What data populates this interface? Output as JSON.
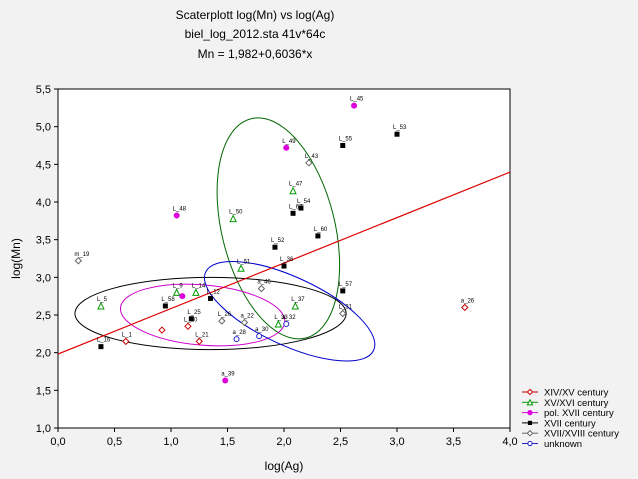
{
  "chart_data": {
    "type": "scatter",
    "title": "Scaterplott log(Mn) vs log(Ag)",
    "subtitle": "biel_log_2012.sta 41v*64c",
    "equation": "Mn = 1,982+0,6036*x",
    "xlabel": "log(Ag)",
    "ylabel": "log(Mn)",
    "xlim": [
      0.0,
      4.0
    ],
    "ylim": [
      1.0,
      5.5
    ],
    "x_ticks": [
      "0,0",
      "0,5",
      "1,0",
      "1,5",
      "2,0",
      "2,5",
      "3,0",
      "3,5",
      "4,0"
    ],
    "y_ticks": [
      "1,0",
      "1,5",
      "2,0",
      "2,5",
      "3,0",
      "3,5",
      "4,0",
      "4,5",
      "5,0",
      "5,5"
    ],
    "grid": false,
    "legend_position": "bottom-right",
    "regression": {
      "intercept": 1.982,
      "slope": 0.6036,
      "color": "#dd0000"
    },
    "series": [
      {
        "name": "XIV/XV century",
        "color": "#cc0000",
        "marker": "diamond-open",
        "points": [
          {
            "x": 0.6,
            "y": 2.15,
            "label": "L_1"
          },
          {
            "x": 0.92,
            "y": 2.3,
            "label": ""
          },
          {
            "x": 1.15,
            "y": 2.35,
            "label": "L_20"
          },
          {
            "x": 1.25,
            "y": 2.15,
            "label": "L_21"
          },
          {
            "x": 3.6,
            "y": 2.6,
            "label": "a_26"
          }
        ]
      },
      {
        "name": "XV/XVI century",
        "color": "#009900",
        "marker": "triangle-open",
        "points": [
          {
            "x": 0.38,
            "y": 2.62,
            "label": "L_5"
          },
          {
            "x": 1.05,
            "y": 2.8,
            "label": "L_9"
          },
          {
            "x": 1.22,
            "y": 2.8,
            "label": "L_14"
          },
          {
            "x": 1.55,
            "y": 3.78,
            "label": "L_50"
          },
          {
            "x": 1.62,
            "y": 3.12,
            "label": "L_51"
          },
          {
            "x": 2.08,
            "y": 4.15,
            "label": "L_47"
          },
          {
            "x": 2.1,
            "y": 2.62,
            "label": "L_37"
          },
          {
            "x": 1.95,
            "y": 2.38,
            "label": "L_33"
          }
        ]
      },
      {
        "name": "pol. XVII century",
        "color": "#dd00dd",
        "marker": "circle-filled",
        "points": [
          {
            "x": 1.05,
            "y": 3.82,
            "label": "L_48"
          },
          {
            "x": 2.02,
            "y": 4.72,
            "label": "L_49"
          },
          {
            "x": 2.62,
            "y": 5.28,
            "label": "L_45"
          },
          {
            "x": 1.48,
            "y": 1.63,
            "label": "a_39"
          },
          {
            "x": 1.1,
            "y": 2.75,
            "label": ""
          }
        ]
      },
      {
        "name": "XVII century",
        "color": "#000000",
        "marker": "square-filled",
        "points": [
          {
            "x": 0.38,
            "y": 2.08,
            "label": "L_16"
          },
          {
            "x": 0.95,
            "y": 2.62,
            "label": "L_58"
          },
          {
            "x": 2.52,
            "y": 4.75,
            "label": "L_55"
          },
          {
            "x": 3.0,
            "y": 4.9,
            "label": "L_53"
          },
          {
            "x": 2.08,
            "y": 3.85,
            "label": "L_63"
          },
          {
            "x": 2.3,
            "y": 3.55,
            "label": "L_60"
          },
          {
            "x": 2.0,
            "y": 3.15,
            "label": "L_36"
          },
          {
            "x": 2.52,
            "y": 2.82,
            "label": "L_57"
          },
          {
            "x": 1.92,
            "y": 3.4,
            "label": "L_52"
          },
          {
            "x": 2.15,
            "y": 3.92,
            "label": "L_54"
          },
          {
            "x": 1.35,
            "y": 2.72,
            "label": "L_12"
          },
          {
            "x": 1.18,
            "y": 2.45,
            "label": "L_25"
          }
        ]
      },
      {
        "name": "XVII/XVIII century",
        "color": "#666666",
        "marker": "diamond-open",
        "points": [
          {
            "x": 0.18,
            "y": 3.22,
            "label": "m_19"
          },
          {
            "x": 2.22,
            "y": 4.52,
            "label": "L_43"
          },
          {
            "x": 2.52,
            "y": 2.52,
            "label": "L_31"
          },
          {
            "x": 1.8,
            "y": 2.85,
            "label": "a_46"
          },
          {
            "x": 1.65,
            "y": 2.4,
            "label": "a_22"
          },
          {
            "x": 1.45,
            "y": 2.42,
            "label": "L_26"
          }
        ]
      },
      {
        "name": "unknown",
        "color": "#2222cc",
        "marker": "circle-open",
        "points": [
          {
            "x": 1.58,
            "y": 2.18,
            "label": "a_28"
          },
          {
            "x": 1.78,
            "y": 2.22,
            "label": "a_30"
          },
          {
            "x": 2.02,
            "y": 2.38,
            "label": "a_32"
          }
        ]
      }
    ],
    "ellipses": [
      {
        "series": "XV/XVI century",
        "color": "#006600",
        "cx": 1.95,
        "cy": 3.65,
        "rx": 0.5,
        "ry": 1.5,
        "angle_deg": -14
      },
      {
        "series": "XVII century",
        "color": "#000000",
        "cx": 1.35,
        "cy": 2.52,
        "rx": 1.2,
        "ry": 0.48,
        "angle_deg": 0
      },
      {
        "series": "pol. XVII century",
        "color": "#cc00cc",
        "cx": 1.28,
        "cy": 2.5,
        "rx": 0.73,
        "ry": 0.4,
        "angle_deg": 5
      },
      {
        "series": "unknown",
        "color": "#0000cc",
        "cx": 2.05,
        "cy": 2.55,
        "rx": 0.82,
        "ry": 0.45,
        "angle_deg": 25
      }
    ]
  }
}
